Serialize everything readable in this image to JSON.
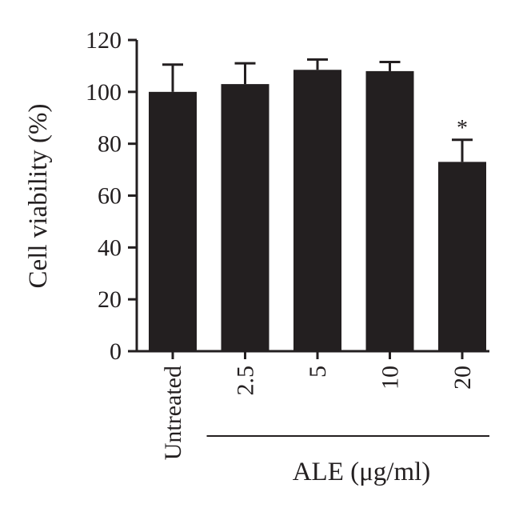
{
  "chart_data": {
    "type": "bar",
    "categories": [
      "Untreated",
      "2.5",
      "5",
      "10",
      "20"
    ],
    "values": [
      100,
      103,
      108.5,
      108,
      73
    ],
    "errors": [
      10.5,
      8,
      4,
      3.5,
      8.5
    ],
    "annotations": [
      "",
      "",
      "",
      "",
      "*"
    ],
    "ylabel": "Cell viability (%)",
    "group_label": "ALE (μg/ml)",
    "ylim": [
      0,
      120
    ],
    "yticks": [
      0,
      20,
      40,
      60,
      80,
      100,
      120
    ],
    "bar_color": "#231f20",
    "grid": false
  }
}
